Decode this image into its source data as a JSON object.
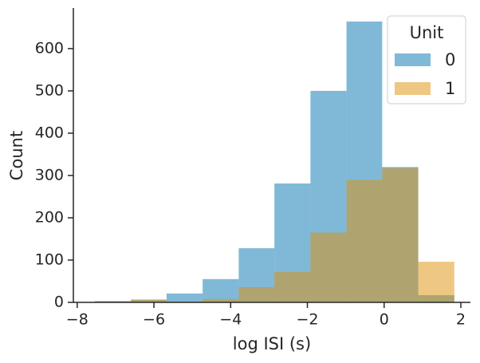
{
  "chart_data": {
    "type": "histogram",
    "x_label": "log ISI (s)",
    "y_label": "Count",
    "bins": [
      -7.54,
      -6.6,
      -5.67,
      -4.73,
      -3.79,
      -2.86,
      -1.92,
      -0.98,
      -0.05,
      0.89,
      1.83
    ],
    "series": [
      {
        "name": "0",
        "color": "#0173b2",
        "values": [
          3,
          6,
          21,
          55,
          128,
          281,
          500,
          664,
          320,
          17
        ]
      },
      {
        "name": "1",
        "color": "#de8f05",
        "values": [
          2,
          7,
          2,
          8,
          36,
          72,
          165,
          290,
          318,
          96
        ]
      }
    ],
    "legend_title": "Unit",
    "legend_position": "upper right",
    "xlim": [
      -8.1,
      2.25
    ],
    "ylim": [
      0,
      696
    ],
    "xticks": [
      {
        "value": -8,
        "label": "−8"
      },
      {
        "value": -6,
        "label": "−6"
      },
      {
        "value": -4,
        "label": "−4"
      },
      {
        "value": -2,
        "label": "−2"
      },
      0,
      2
    ],
    "yticks": [
      0,
      100,
      200,
      300,
      400,
      500,
      600
    ],
    "grid": false
  }
}
